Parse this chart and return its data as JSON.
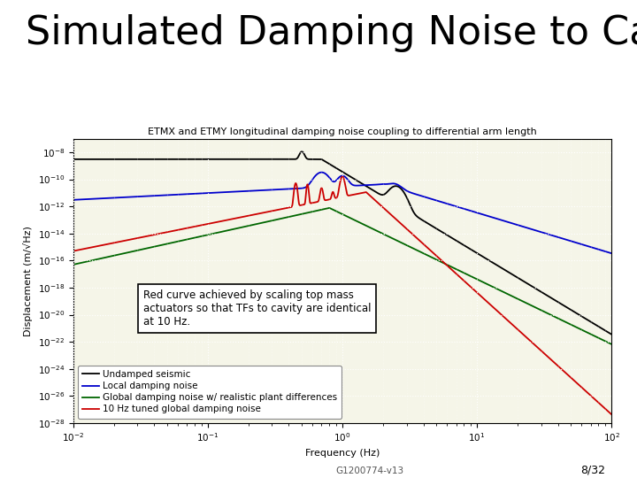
{
  "title_main": "Simulated Damping Noise to Cavity",
  "plot_title": "ETMX and ETMY longitudinal damping noise coupling to differential arm length",
  "xlabel": "Frequency (Hz)",
  "ylabel": "Displacement (m/√Hz)",
  "xlim_log": [
    -2,
    2
  ],
  "ylim_log": [
    -28,
    -7
  ],
  "background_color": "#ffffff",
  "plot_bg_color": "#f5f5e8",
  "grid_color": "#ffffff",
  "legend_entries": [
    "Undamped seismic",
    "Local damping noise",
    "Global damping noise w/ realistic plant differences",
    "10 Hz tuned global damping noise"
  ],
  "line_colors": [
    "#000000",
    "#0000cc",
    "#006600",
    "#cc0000"
  ],
  "annotation_text": "Red curve achieved by scaling top mass\nactuators so that TFs to cavity are identical\nat 10 Hz.",
  "footer_left": "G1200774-v13",
  "footer_right": "8/32",
  "title_fontsize": 32,
  "plot_title_fontsize": 8,
  "axis_label_fontsize": 8,
  "tick_fontsize": 7.5,
  "legend_fontsize": 7.5,
  "annotation_fontsize": 8.5
}
